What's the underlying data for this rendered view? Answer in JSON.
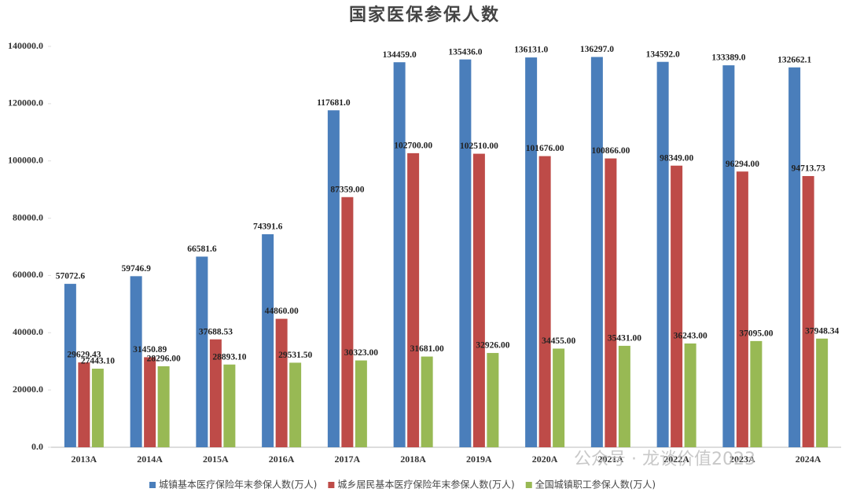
{
  "chart_data": {
    "type": "bar",
    "title": "国家医保参保人数",
    "categories": [
      "2013A",
      "2014A",
      "2015A",
      "2016A",
      "2017A",
      "2018A",
      "2019A",
      "2020A",
      "2021A",
      "2022A",
      "2023A",
      "2024A"
    ],
    "series": [
      {
        "name": "城镇基本医疗保险年末参保人数(万人)",
        "color": "#4a7ebb",
        "values": [
          57072.6,
          59746.9,
          66581.6,
          74391.6,
          117681.0,
          134459.0,
          135436.0,
          136131.0,
          136297.0,
          134592.0,
          133389.0,
          132662.1
        ],
        "value_labels": [
          "57072.6",
          "59746.9",
          "66581.6",
          "74391.6",
          "117681.0",
          "134459.0",
          "135436.0",
          "136131.0",
          "136297.0",
          "134592.0",
          "133389.0",
          "132662.1"
        ]
      },
      {
        "name": "城乡居民基本医疗保险年末参保人数(万人)",
        "color": "#be4b48",
        "values": [
          29629.43,
          31450.89,
          37688.53,
          44860.0,
          87359.0,
          102700.0,
          102510.0,
          101676.0,
          100866.0,
          98349.0,
          96294.0,
          94713.73
        ],
        "value_labels": [
          "29629.43",
          "31450.89",
          "37688.53",
          "44860.00",
          "87359.00",
          "102700.00",
          "102510.00",
          "101676.00",
          "100866.00",
          "98349.00",
          "96294.00",
          "94713.73"
        ]
      },
      {
        "name": "全国城镇职工参保人数(万人)",
        "color": "#98b954",
        "values": [
          27443.1,
          28296.0,
          28893.1,
          29531.5,
          30323.0,
          31681.0,
          32926.0,
          34455.0,
          35431.0,
          36243.0,
          37095.0,
          37948.34
        ],
        "value_labels": [
          "27443.10",
          "28296.00",
          "28893.10",
          "29531.50",
          "30323.00",
          "31681.00",
          "32926.00",
          "34455.00",
          "35431.00",
          "36243.00",
          "37095.00",
          "37948.34"
        ]
      }
    ],
    "ylim": [
      0,
      140000
    ],
    "yticks": [
      {
        "value": 0,
        "label": "0.0"
      },
      {
        "value": 20000,
        "label": "20000.0"
      },
      {
        "value": 40000,
        "label": "40000.0"
      },
      {
        "value": 60000,
        "label": "60000.0"
      },
      {
        "value": 80000,
        "label": "80000.0"
      },
      {
        "value": 100000,
        "label": "100000.0"
      },
      {
        "value": 120000,
        "label": "120000.0"
      },
      {
        "value": 140000,
        "label": "140000.0"
      }
    ],
    "grid": false,
    "legend": "bottom",
    "watermark": "公众号 · 龙谈价值2023"
  }
}
